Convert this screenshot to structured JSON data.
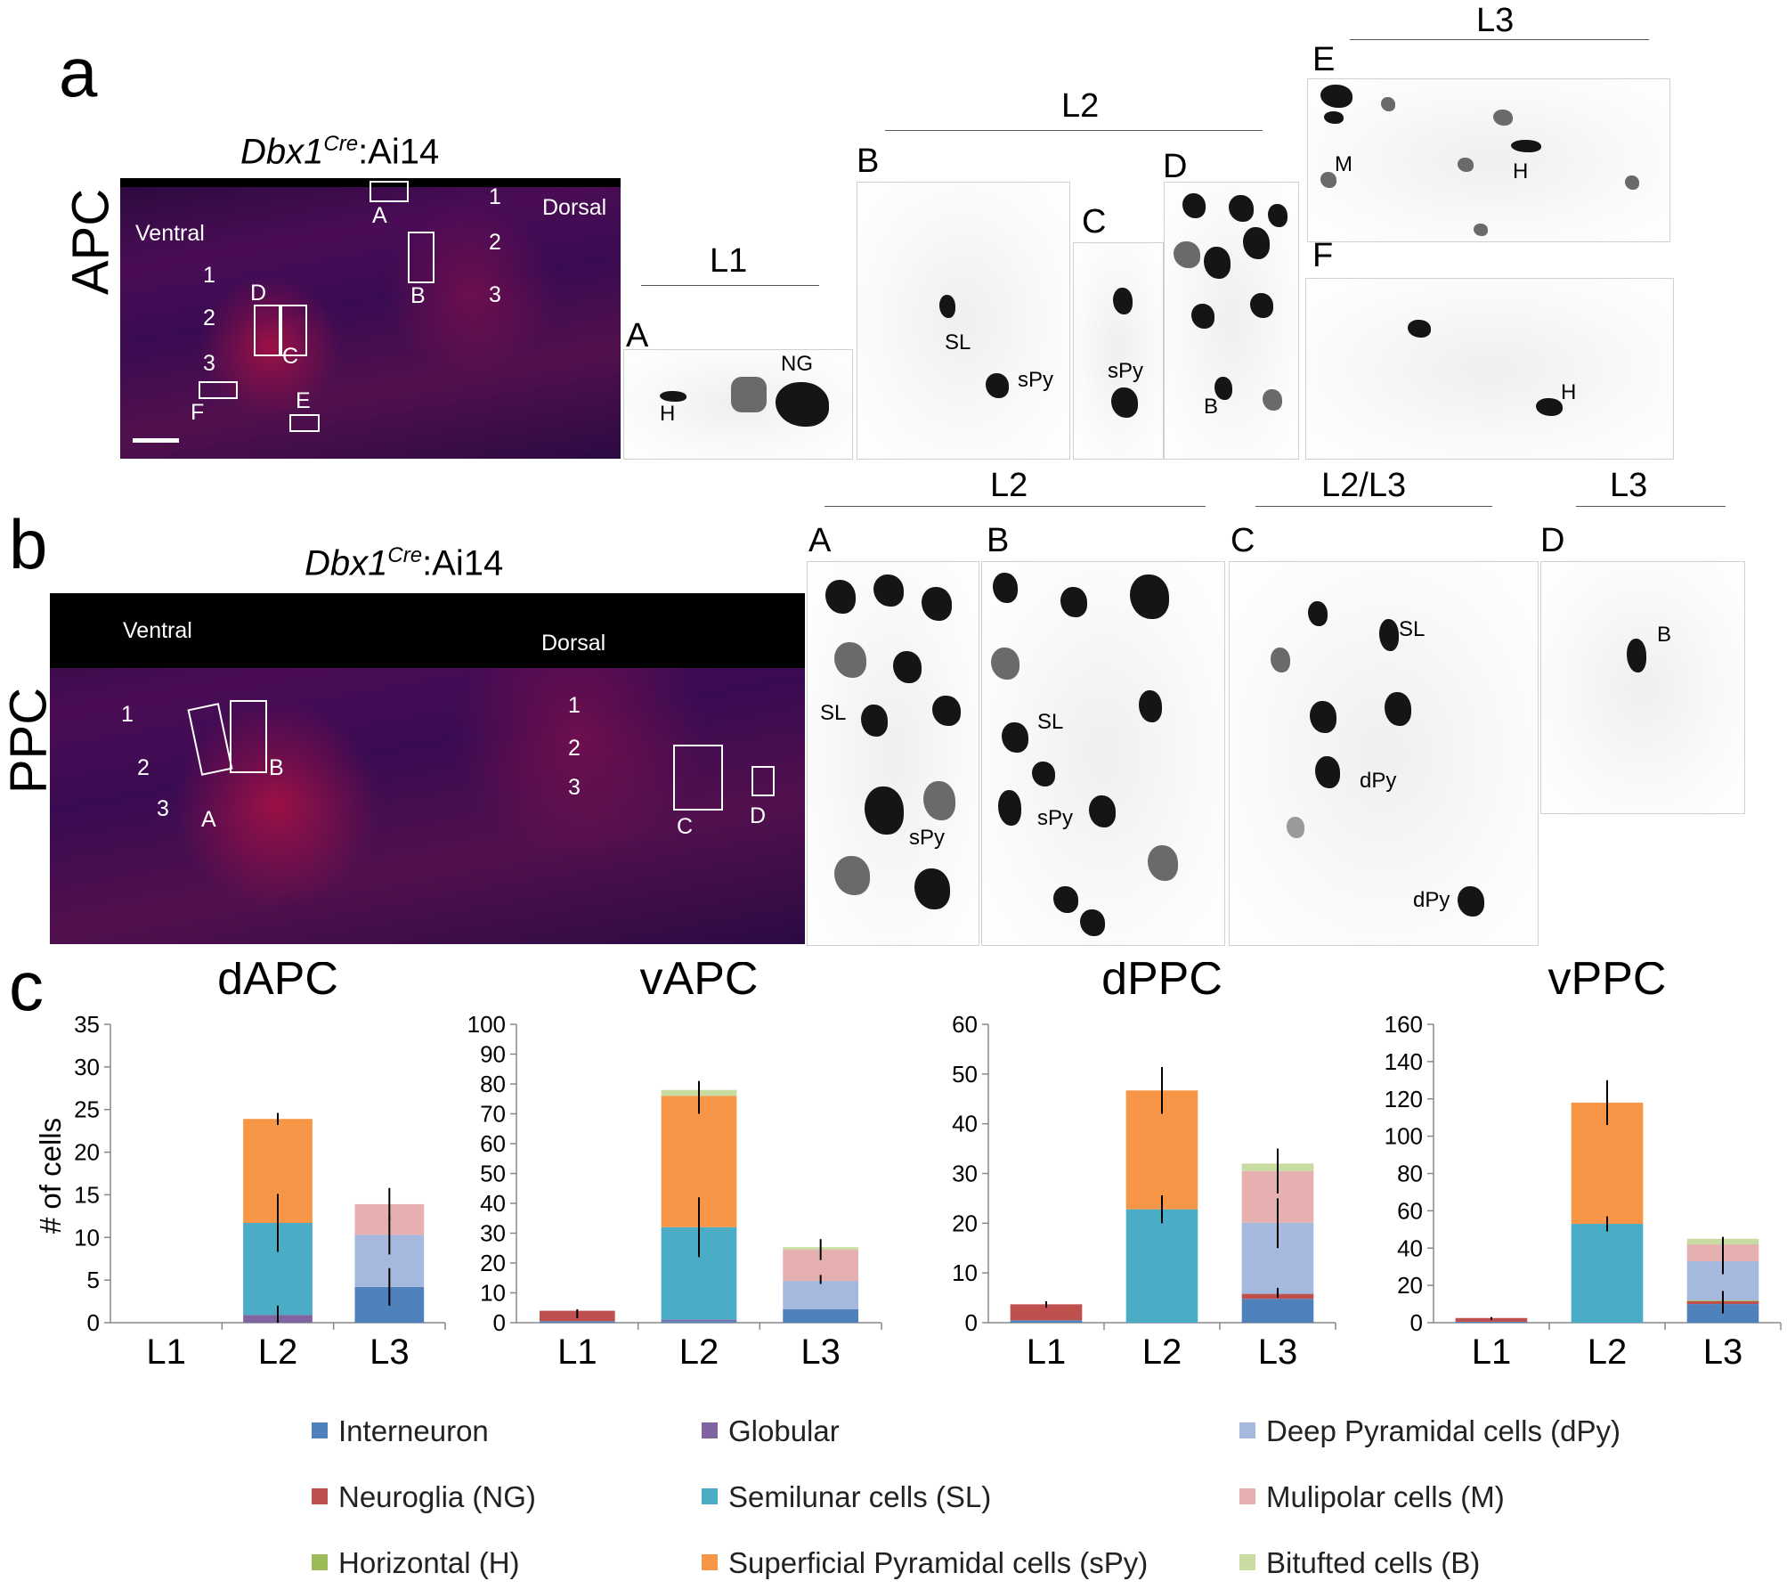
{
  "panel_a": {
    "letter": "a",
    "row_label": "APC",
    "title_gene": "Dbx1",
    "title_sup": "Cre",
    "title_rest": ":Ai14",
    "ventral": "Ventral",
    "dorsal": "Dorsal",
    "ventral_layers": [
      "1",
      "2",
      "3"
    ],
    "dorsal_layers": [
      "1",
      "2",
      "3"
    ],
    "rois": [
      "A",
      "B",
      "C",
      "D",
      "E",
      "F"
    ],
    "insets": {
      "L1": "L1",
      "L2": "L2",
      "L3": "L3",
      "A": "A",
      "B": "B",
      "C": "C",
      "D": "D",
      "E": "E",
      "F": "F",
      "a_H": "H",
      "a_NG": "NG",
      "b_SL": "SL",
      "b_sPy": "sPy",
      "c_sPy": "sPy",
      "d_B": "B",
      "e_M": "M",
      "e_H": "H",
      "f_H": "H"
    }
  },
  "panel_b": {
    "letter": "b",
    "row_label": "PPC",
    "title_gene": "Dbx1",
    "title_sup": "Cre",
    "title_rest": ":Ai14",
    "ventral": "Ventral",
    "dorsal": "Dorsal",
    "ventral_layers": [
      "1",
      "2",
      "3"
    ],
    "dorsal_layers": [
      "1",
      "2",
      "3"
    ],
    "rois": [
      "A",
      "B",
      "C",
      "D"
    ],
    "insets": {
      "L2": "L2",
      "L2L3": "L2/L3",
      "L3": "L3",
      "A": "A",
      "B": "B",
      "C": "C",
      "D": "D",
      "a_SL": "SL",
      "a_sPy": "sPy",
      "b_SL": "SL",
      "b_sPy": "sPy",
      "c_SL": "SL",
      "c_dPy1": "dPy",
      "c_dPy2": "dPy",
      "d_B": "B"
    }
  },
  "panel_c": {
    "letter": "c",
    "ylabel": "# of cells"
  },
  "colors": {
    "Interneuron": "#4f81bd",
    "Neuroglia (NG)": "#c0504d",
    "Horizontal (H)": "#9bbb59",
    "Globular": "#8064a2",
    "Semilunar cells (SL)": "#4bacc6",
    "Superficial Pyramidal cells (sPy)": "#f79646",
    "Deep Pyramidal cells (dPy)": "#a5b8dd",
    "Mulipolar cells (M)": "#e6b0b0",
    "Bitufted cells (B)": "#c8dba0"
  },
  "legend": [
    "Interneuron",
    "Neuroglia (NG)",
    "Horizontal (H)",
    "Globular",
    "Semilunar cells (SL)",
    "Superficial Pyramidal cells (sPy)",
    "Deep Pyramidal cells (dPy)",
    "Mulipolar cells (M)",
    "Bitufted cells (B)"
  ],
  "chart_data": [
    {
      "type": "bar",
      "title": "dAPC",
      "xlabel": "",
      "ylabel": "# of cells",
      "categories": [
        "L1",
        "L2",
        "L3"
      ],
      "ylim": [
        0,
        35
      ],
      "yticks": [
        0,
        5,
        10,
        15,
        20,
        25,
        30,
        35
      ],
      "stacked": true,
      "series": [
        {
          "name": "Interneuron",
          "values": [
            0,
            0,
            4.2
          ]
        },
        {
          "name": "Neuroglia (NG)",
          "values": [
            0,
            0,
            0
          ]
        },
        {
          "name": "Horizontal (H)",
          "values": [
            0,
            0,
            0
          ]
        },
        {
          "name": "Globular",
          "values": [
            0,
            0.9,
            0
          ]
        },
        {
          "name": "Semilunar cells (SL)",
          "values": [
            0,
            10.8,
            0
          ]
        },
        {
          "name": "Superficial Pyramidal cells (sPy)",
          "values": [
            0,
            12.2,
            0
          ]
        },
        {
          "name": "Deep Pyramidal cells (dPy)",
          "values": [
            0,
            0,
            6.1
          ]
        },
        {
          "name": "Mulipolar cells (M)",
          "values": [
            0,
            0,
            3.6
          ]
        },
        {
          "name": "Bitufted cells (B)",
          "values": [
            0,
            0,
            0
          ]
        }
      ],
      "error_bars": [
        {
          "category": "L2",
          "at": 0.9,
          "low": 0,
          "high": 2
        },
        {
          "category": "L2",
          "at": 11.7,
          "low": 8.3,
          "high": 15.1
        },
        {
          "category": "L2",
          "at": 23.9,
          "low": 23.2,
          "high": 24.6
        },
        {
          "category": "L3",
          "at": 4.2,
          "low": 2,
          "high": 6.4
        },
        {
          "category": "L3",
          "at": 10.3,
          "low": 8,
          "high": 12.6
        },
        {
          "category": "L3",
          "at": 13.9,
          "low": 12,
          "high": 15.8
        }
      ]
    },
    {
      "type": "bar",
      "title": "vAPC",
      "xlabel": "",
      "ylabel": "",
      "categories": [
        "L1",
        "L2",
        "L3"
      ],
      "ylim": [
        0,
        100
      ],
      "yticks": [
        0,
        10,
        20,
        30,
        40,
        50,
        60,
        70,
        80,
        90,
        100
      ],
      "stacked": true,
      "series": [
        {
          "name": "Interneuron",
          "values": [
            0.5,
            0.5,
            4.5
          ]
        },
        {
          "name": "Neuroglia (NG)",
          "values": [
            3.5,
            0,
            0
          ]
        },
        {
          "name": "Horizontal (H)",
          "values": [
            0,
            0,
            0
          ]
        },
        {
          "name": "Globular",
          "values": [
            0,
            0.5,
            0
          ]
        },
        {
          "name": "Semilunar cells (SL)",
          "values": [
            0,
            31,
            0
          ]
        },
        {
          "name": "Superficial Pyramidal cells (sPy)",
          "values": [
            0,
            44,
            0
          ]
        },
        {
          "name": "Deep Pyramidal cells (dPy)",
          "values": [
            0,
            0,
            9.5
          ]
        },
        {
          "name": "Mulipolar cells (M)",
          "values": [
            0,
            0,
            10.5
          ]
        },
        {
          "name": "Bitufted cells (B)",
          "values": [
            0,
            2,
            0.8
          ]
        }
      ],
      "error_bars": [
        {
          "category": "L1",
          "at": 4,
          "low": 1.5,
          "high": 4.5
        },
        {
          "category": "L2",
          "at": 32,
          "low": 22,
          "high": 42
        },
        {
          "category": "L2",
          "at": 76,
          "low": 70,
          "high": 81
        },
        {
          "category": "L3",
          "at": 14,
          "low": 13,
          "high": 16
        },
        {
          "category": "L3",
          "at": 25,
          "low": 21,
          "high": 28
        }
      ]
    },
    {
      "type": "bar",
      "title": "dPPC",
      "xlabel": "",
      "ylabel": "",
      "categories": [
        "L1",
        "L2",
        "L3"
      ],
      "ylim": [
        0,
        60
      ],
      "yticks": [
        0,
        10,
        20,
        30,
        40,
        50,
        60
      ],
      "stacked": true,
      "series": [
        {
          "name": "Interneuron",
          "values": [
            0.5,
            0,
            4.8
          ]
        },
        {
          "name": "Neuroglia (NG)",
          "values": [
            3.2,
            0,
            1
          ]
        },
        {
          "name": "Horizontal (H)",
          "values": [
            0,
            0,
            0
          ]
        },
        {
          "name": "Globular",
          "values": [
            0,
            0,
            0
          ]
        },
        {
          "name": "Semilunar cells (SL)",
          "values": [
            0,
            22.8,
            0
          ]
        },
        {
          "name": "Superficial Pyramidal cells (sPy)",
          "values": [
            0,
            23.9,
            0
          ]
        },
        {
          "name": "Deep Pyramidal cells (dPy)",
          "values": [
            0,
            0,
            14.3
          ]
        },
        {
          "name": "Mulipolar cells (M)",
          "values": [
            0,
            0,
            10.4
          ]
        },
        {
          "name": "Bitufted cells (B)",
          "values": [
            0,
            0,
            1.5
          ]
        }
      ],
      "error_bars": [
        {
          "category": "L1",
          "at": 3.7,
          "low": 3,
          "high": 4.3
        },
        {
          "category": "L2",
          "at": 22.8,
          "low": 20,
          "high": 25.6
        },
        {
          "category": "L2",
          "at": 46.7,
          "low": 42,
          "high": 51.4
        },
        {
          "category": "L3",
          "at": 5.8,
          "low": 5,
          "high": 7
        },
        {
          "category": "L3",
          "at": 20.1,
          "low": 15,
          "high": 25
        },
        {
          "category": "L3",
          "at": 30.5,
          "low": 26,
          "high": 35
        }
      ]
    },
    {
      "type": "bar",
      "title": "vPPC",
      "xlabel": "",
      "ylabel": "",
      "categories": [
        "L1",
        "L2",
        "L3"
      ],
      "ylim": [
        0,
        160
      ],
      "yticks": [
        0,
        20,
        40,
        60,
        80,
        100,
        120,
        140,
        160
      ],
      "stacked": true,
      "series": [
        {
          "name": "Interneuron",
          "values": [
            0.5,
            0,
            10
          ]
        },
        {
          "name": "Neuroglia (NG)",
          "values": [
            2,
            0,
            1.5
          ]
        },
        {
          "name": "Horizontal (H)",
          "values": [
            0,
            0,
            0.5
          ]
        },
        {
          "name": "Globular",
          "values": [
            0,
            0,
            0
          ]
        },
        {
          "name": "Semilunar cells (SL)",
          "values": [
            0,
            53,
            0
          ]
        },
        {
          "name": "Superficial Pyramidal cells (sPy)",
          "values": [
            0,
            65,
            0
          ]
        },
        {
          "name": "Deep Pyramidal cells (dPy)",
          "values": [
            0,
            0,
            21
          ]
        },
        {
          "name": "Mulipolar cells (M)",
          "values": [
            0,
            0,
            9
          ]
        },
        {
          "name": "Bitufted cells (B)",
          "values": [
            0,
            0,
            3
          ]
        }
      ],
      "error_bars": [
        {
          "category": "L1",
          "at": 2.5,
          "low": 1.5,
          "high": 3
        },
        {
          "category": "L2",
          "at": 53,
          "low": 49,
          "high": 57
        },
        {
          "category": "L2",
          "at": 118,
          "low": 106,
          "high": 130
        },
        {
          "category": "L3",
          "at": 11.5,
          "low": 5,
          "high": 17
        },
        {
          "category": "L3",
          "at": 33,
          "low": 26,
          "high": 40
        },
        {
          "category": "L3",
          "at": 42,
          "low": 38,
          "high": 46
        }
      ]
    }
  ]
}
